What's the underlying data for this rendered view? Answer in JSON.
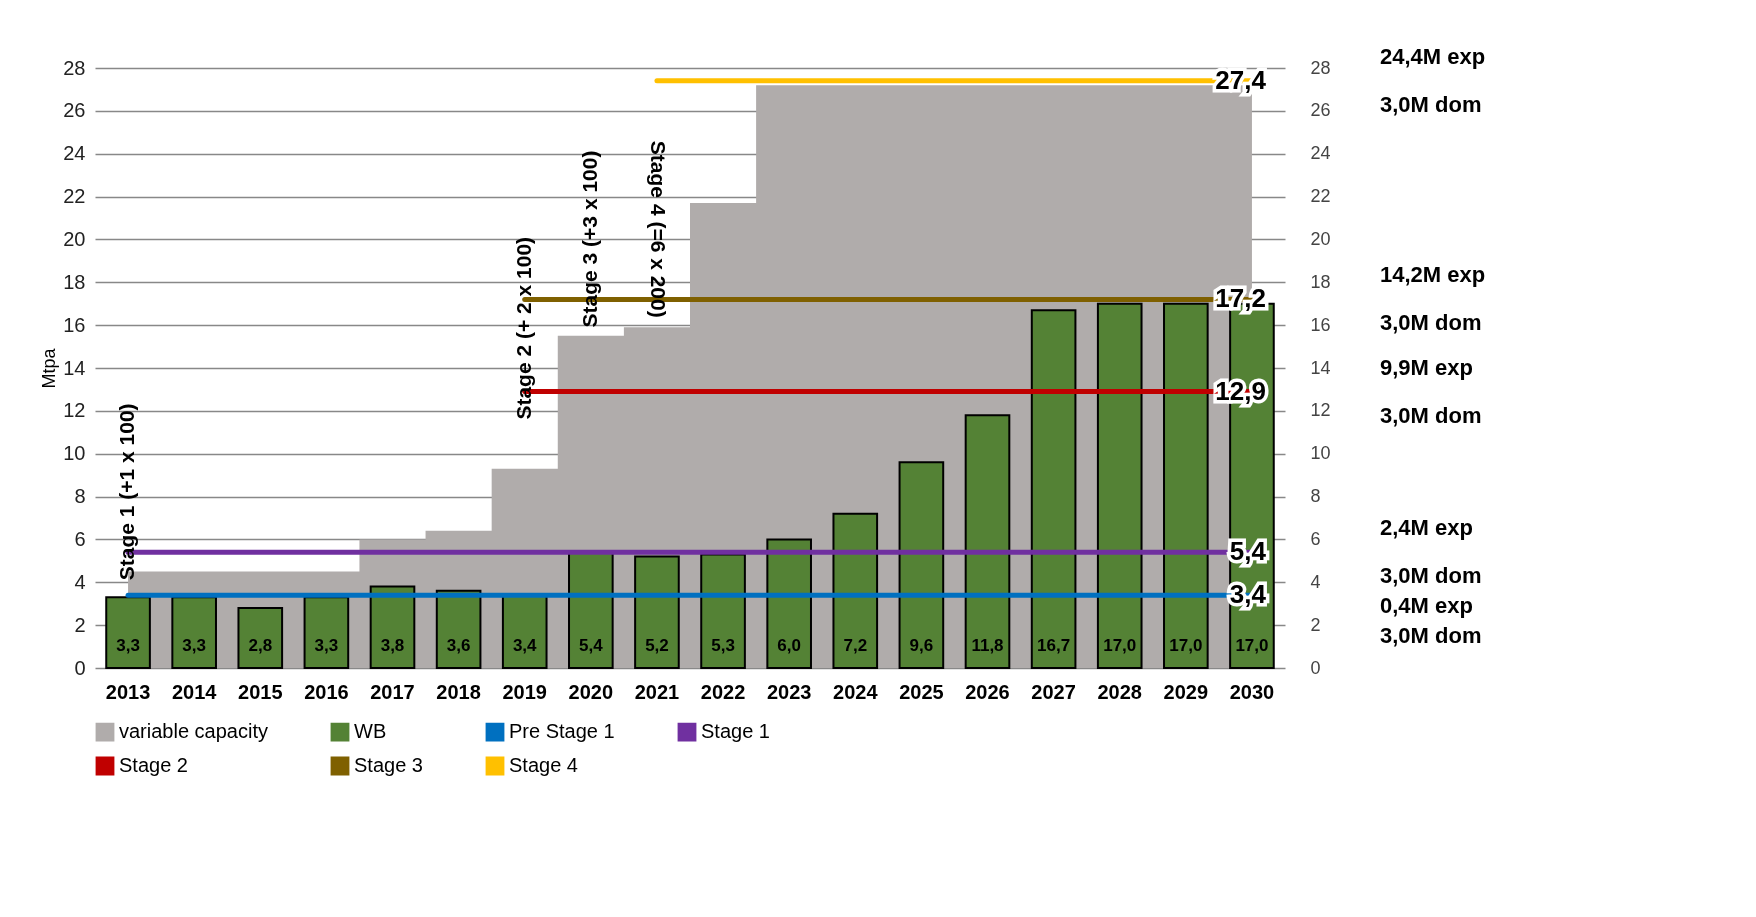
{
  "chart_data": {
    "type": "bar",
    "ylabel": "Mtpa",
    "categories": [
      "2013",
      "2014",
      "2015",
      "2016",
      "2017",
      "2018",
      "2019",
      "2020",
      "2021",
      "2022",
      "2023",
      "2024",
      "2025",
      "2026",
      "2027",
      "2028",
      "2029",
      "2030"
    ],
    "series": [
      {
        "name": "variable capacity",
        "type": "area",
        "color": "#b0acab",
        "values": [
          4.5,
          4.5,
          4.5,
          4.5,
          6.0,
          6.4,
          9.3,
          15.5,
          15.9,
          21.7,
          27.2,
          27.2,
          27.2,
          27.2,
          27.2,
          27.2,
          27.2,
          27.2
        ]
      },
      {
        "name": "WB",
        "color": "#548235",
        "values": [
          3.3,
          3.3,
          2.8,
          3.3,
          3.8,
          3.6,
          3.4,
          5.4,
          5.2,
          5.3,
          6.0,
          7.2,
          9.6,
          11.8,
          16.7,
          17.0,
          17.0,
          17.0
        ],
        "value_labels": [
          "3,3",
          "3,3",
          "2,8",
          "3,3",
          "3,8",
          "3,6",
          "3,4",
          "5,4",
          "5,2",
          "5,3",
          "6,0",
          "7,2",
          "9,6",
          "11,8",
          "16,7",
          "17,0",
          "17,0",
          "17,0"
        ]
      },
      {
        "name": "Pre Stage 1",
        "type": "line",
        "color": "#0070c0",
        "values": [
          3.4,
          3.4,
          3.4,
          3.4,
          3.4,
          3.4,
          3.4,
          3.4,
          3.4,
          3.4,
          3.4,
          3.4,
          3.4,
          3.4,
          3.4,
          3.4,
          3.4,
          3.4
        ],
        "value_labels": [
          null,
          null,
          null,
          null,
          null,
          null,
          null,
          null,
          null,
          null,
          null,
          null,
          null,
          null,
          null,
          null,
          null,
          "3,4"
        ]
      },
      {
        "name": "Stage 1",
        "type": "line",
        "color": "#7030a0",
        "values": [
          5.4,
          5.4,
          5.4,
          5.4,
          5.4,
          5.4,
          5.4,
          5.4,
          5.4,
          5.4,
          5.4,
          5.4,
          5.4,
          5.4,
          5.4,
          5.4,
          5.4,
          5.4
        ],
        "value_labels": [
          null,
          null,
          null,
          null,
          null,
          null,
          null,
          null,
          null,
          null,
          null,
          null,
          null,
          null,
          null,
          null,
          null,
          "5,4"
        ]
      },
      {
        "name": "Stage 2",
        "type": "line",
        "color": "#c00000",
        "values": [
          null,
          null,
          null,
          null,
          null,
          null,
          12.9,
          12.9,
          12.9,
          12.9,
          12.9,
          12.9,
          12.9,
          12.9,
          12.9,
          12.9,
          12.9,
          12.9
        ],
        "value_labels": [
          null,
          null,
          null,
          null,
          null,
          null,
          null,
          null,
          null,
          null,
          null,
          null,
          null,
          null,
          null,
          null,
          null,
          "12,9"
        ]
      },
      {
        "name": "Stage 3",
        "type": "line",
        "color": "#7f6000",
        "values": [
          null,
          null,
          null,
          null,
          null,
          null,
          17.2,
          17.2,
          17.2,
          17.2,
          17.2,
          17.2,
          17.2,
          17.2,
          17.2,
          17.2,
          17.2,
          17.2
        ],
        "value_labels": [
          null,
          null,
          null,
          null,
          null,
          null,
          null,
          null,
          null,
          null,
          null,
          null,
          null,
          null,
          null,
          null,
          null,
          "17,2"
        ]
      },
      {
        "name": "Stage 4",
        "type": "line",
        "color": "#ffc000",
        "values": [
          null,
          null,
          null,
          null,
          null,
          null,
          null,
          null,
          27.4,
          27.4,
          27.4,
          27.4,
          27.4,
          27.4,
          27.4,
          27.4,
          27.4,
          27.4
        ],
        "value_labels": [
          null,
          null,
          null,
          null,
          null,
          null,
          null,
          null,
          null,
          null,
          null,
          null,
          null,
          null,
          null,
          null,
          null,
          "27,4"
        ]
      }
    ],
    "ylim": [
      0,
      28
    ],
    "yticks": [
      0,
      2,
      4,
      6,
      8,
      10,
      12,
      14,
      16,
      18,
      20,
      22,
      24,
      26,
      28
    ],
    "y2lim": [
      0,
      28
    ],
    "y2ticks": [
      0,
      2,
      4,
      6,
      8,
      10,
      12,
      14,
      16,
      18,
      20,
      22,
      24,
      26,
      28
    ],
    "grid": "y",
    "legend": "bottom",
    "annotations": [
      {
        "text": "Stage 1 (+1 x 100)",
        "x": "2013",
        "y": 5.4
      },
      {
        "text": "Stage 2 (+ 2 x 100)",
        "x": "2019",
        "y": 12.9
      },
      {
        "text": "Stage 3 (+3 x 100)",
        "x": "2020",
        "y": 17.2
      },
      {
        "text": "Stage 4 (=6 x 200)",
        "x": "2021",
        "y": 27.4
      },
      "24,4M exp",
      "3,0M dom",
      "14,2M exp",
      "3,0M dom",
      "9,9M exp",
      "3,0M dom",
      "2,4M exp",
      "3,0M dom",
      "0,4M exp",
      "3,0M dom"
    ]
  }
}
